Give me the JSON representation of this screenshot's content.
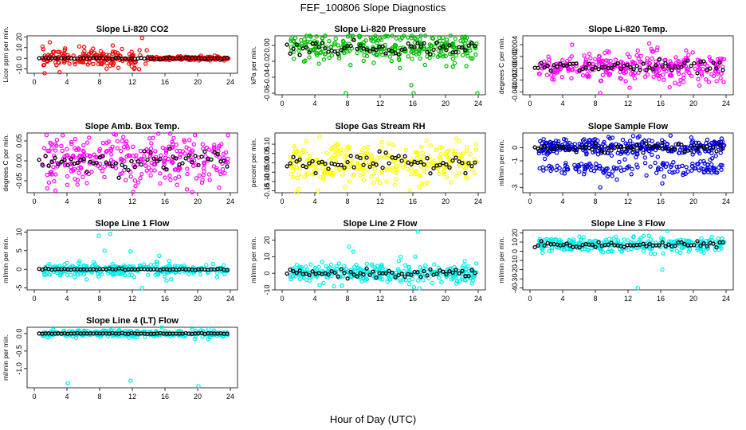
{
  "figure": {
    "title": "FEF_100806  Slope Diagnostics",
    "xlabel": "Hour of Day (UTC)"
  },
  "chart_data": [
    {
      "type": "scatter",
      "title": "Slope Li-820 CO2",
      "ylabel": "Licor ppm per min.",
      "color": "#ff0000",
      "xlim": [
        0,
        24
      ],
      "xticks": [
        0,
        4,
        8,
        12,
        16,
        20,
        24
      ],
      "ylim": [
        -14,
        21
      ],
      "yticks": [
        -10,
        0,
        10,
        20
      ],
      "ytick_labels": [
        "-10",
        "0",
        "10",
        "20"
      ],
      "highlight_color": "#000000",
      "series": [
        {
          "mean": 0,
          "spread": 2.5,
          "outliers": [
            [
              1.9,
              15
            ],
            [
              5.5,
              11
            ],
            [
              9.6,
              12
            ],
            [
              13.2,
              19
            ],
            [
              10.3,
              -9
            ],
            [
              3.1,
              -13
            ],
            [
              12.3,
              -9
            ],
            [
              22,
              -1
            ]
          ]
        }
      ]
    },
    {
      "type": "scatter",
      "title": "Slope Li-820 Pressure",
      "ylabel": "kPa per min.",
      "color": "#00bb00",
      "xlim": [
        0,
        24
      ],
      "xticks": [
        0,
        4,
        8,
        12,
        16,
        20,
        24
      ],
      "ylim": [
        -0.062,
        0.012
      ],
      "yticks": [
        -0.06,
        -0.04,
        -0.02,
        0
      ],
      "ytick_labels": [
        "-0.06",
        "-0.04",
        "-0.02",
        "0.00"
      ],
      "highlight_color": "#000000",
      "series": [
        {
          "mean": -0.003,
          "spread": 0.009,
          "outliers": [
            [
              7.8,
              -0.06
            ],
            [
              16.1,
              -0.06
            ],
            [
              23.9,
              -0.06
            ],
            [
              15.8,
              -0.05
            ],
            [
              4.5,
              -0.023
            ],
            [
              20.1,
              -0.026
            ],
            [
              11.2,
              -0.022
            ]
          ]
        }
      ]
    },
    {
      "type": "scatter",
      "title": "Slope Li-820 Temp.",
      "ylabel": "degrees C per min.",
      "color": "#ff00ff",
      "xlim": [
        0,
        24
      ],
      "xticks": [
        0,
        4,
        8,
        12,
        16,
        20,
        24
      ],
      "ylim": [
        -0.0045,
        0.0055
      ],
      "yticks": [
        -0.004,
        -0.002,
        0,
        0.002,
        0.004
      ],
      "ytick_labels": [
        "-0.004",
        "-0.002",
        "0.000",
        "0.002",
        "0.004"
      ],
      "highlight_color": "#000000",
      "series": [
        {
          "mean": 0.0002,
          "spread": 0.0012,
          "outliers": [
            [
              14.6,
              0.0042
            ],
            [
              15.6,
              0.0035
            ],
            [
              8.6,
              -0.0042
            ],
            [
              12.2,
              -0.0033
            ],
            [
              13.2,
              0.003
            ]
          ]
        }
      ]
    },
    {
      "type": "scatter",
      "title": "Slope Amb. Box Temp.",
      "ylabel": "degrees C per min.",
      "color": "#ff00ff",
      "xlim": [
        0,
        24
      ],
      "xticks": [
        0,
        4,
        8,
        12,
        16,
        20,
        24
      ],
      "ylim": [
        -0.08,
        0.07
      ],
      "yticks": [
        -0.05,
        0,
        0.05
      ],
      "ytick_labels": [
        "-0.05",
        "0.00",
        "0.05"
      ],
      "highlight_color": "#000000",
      "series": [
        {
          "mean": 0,
          "spread": 0.03,
          "outliers": [
            [
              1.5,
              0.065
            ],
            [
              2.6,
              -0.075
            ],
            [
              10.9,
              0.06
            ],
            [
              12.1,
              -0.078
            ],
            [
              6.7,
              0.058
            ]
          ]
        }
      ]
    },
    {
      "type": "scatter",
      "title": "Slope Gas Stream RH",
      "ylabel": "percent per min.",
      "color": "#ffff00",
      "xlim": [
        0,
        24
      ],
      "xticks": [
        0,
        4,
        8,
        12,
        16,
        20,
        24
      ],
      "ylim": [
        -0.16,
        0.16
      ],
      "yticks": [
        -0.15,
        -0.1,
        -0.05,
        0,
        0.05,
        0.1
      ],
      "ytick_labels": [
        "-0.15",
        "-0.10",
        "-0.05",
        "0.00",
        "0.05",
        "0.10"
      ],
      "highlight_color": "#000000",
      "series": [
        {
          "mean": 0,
          "spread": 0.05,
          "outliers": [
            [
              4.6,
              0.14
            ],
            [
              4.4,
              -0.15
            ],
            [
              17.7,
              0.12
            ],
            [
              12.2,
              0.11
            ],
            [
              7.7,
              -0.13
            ]
          ]
        }
      ]
    },
    {
      "type": "scatter",
      "title": "Slope Sample Flow",
      "ylabel": "ml/min per min.",
      "color": "#0000dd",
      "xlim": [
        0,
        24
      ],
      "xticks": [
        0,
        4,
        8,
        12,
        16,
        20,
        24
      ],
      "ylim": [
        -3.4,
        1.1
      ],
      "yticks": [
        -3,
        -2,
        -1,
        0
      ],
      "ytick_labels": [
        "-3",
        "",
        "-1",
        "0"
      ],
      "highlight_color": "#000000",
      "series": [
        {
          "mean": 0,
          "spread": 0.35,
          "outliers": [
            [
              16.2,
              -2.7
            ],
            [
              8.6,
              -3.0
            ],
            [
              17.2,
              0.9
            ],
            [
              9.6,
              0.8
            ]
          ]
        },
        {
          "mean": -1.6,
          "spread": 0.45,
          "outliers": []
        }
      ]
    },
    {
      "type": "scatter",
      "title": "Slope Line 1 Flow",
      "ylabel": "ml/min per min.",
      "color": "#00eeee",
      "xlim": [
        0,
        24
      ],
      "xticks": [
        0,
        4,
        8,
        12,
        16,
        20,
        24
      ],
      "ylim": [
        -5.5,
        10.5
      ],
      "yticks": [
        -5,
        0,
        5,
        10
      ],
      "ytick_labels": [
        "-5",
        "0",
        "5",
        "10"
      ],
      "highlight_color": "#000000",
      "series": [
        {
          "mean": 0,
          "spread": 0.8,
          "outliers": [
            [
              7.9,
              9
            ],
            [
              9.3,
              9.5
            ],
            [
              8.6,
              5
            ],
            [
              13.2,
              -5
            ],
            [
              16.2,
              -3
            ],
            [
              11.8,
              4.8
            ],
            [
              15.3,
              3.6
            ]
          ]
        }
      ]
    },
    {
      "type": "scatter",
      "title": "Slope Line 2 Flow",
      "ylabel": "ml/min per min.",
      "color": "#00eeee",
      "xlim": [
        0,
        24
      ],
      "xticks": [
        0,
        4,
        8,
        12,
        16,
        20,
        24
      ],
      "ylim": [
        -10,
        26
      ],
      "yticks": [
        -10,
        0,
        10,
        20
      ],
      "ytick_labels": [
        "-10",
        "0",
        "10",
        "20"
      ],
      "highlight_color": "#000000",
      "series": [
        {
          "mean": 0,
          "spread": 2.8,
          "outliers": [
            [
              16.6,
              25
            ],
            [
              16.3,
              10
            ],
            [
              8.7,
              13
            ],
            [
              8.2,
              16
            ],
            [
              16.8,
              -9
            ],
            [
              4.6,
              -7
            ]
          ]
        }
      ]
    },
    {
      "type": "scatter",
      "title": "Slope Line 3 Flow",
      "ylabel": "ml/min per min.",
      "color": "#00eeee",
      "xlim": [
        0,
        24
      ],
      "xticks": [
        0,
        4,
        8,
        12,
        16,
        20,
        24
      ],
      "ylim": [
        -42,
        23
      ],
      "yticks": [
        -40,
        -30,
        -20,
        -10,
        0,
        10,
        20
      ],
      "ytick_labels": [
        "-40",
        "-30",
        "-20",
        "-10",
        "0",
        "10",
        "20"
      ],
      "highlight_color": "#000000",
      "series": [
        {
          "mean": 7,
          "spread": 4,
          "outliers": [
            [
              16.8,
              22
            ],
            [
              13.2,
              -40
            ],
            [
              16.2,
              -20
            ]
          ]
        }
      ]
    },
    {
      "type": "scatter",
      "title": "Slope Line 4 (LT) Flow",
      "ylabel": "ml/min per min.",
      "color": "#00eeee",
      "xlim": [
        0,
        24
      ],
      "xticks": [
        0,
        4,
        8,
        12,
        16,
        20,
        24
      ],
      "ylim": [
        -1.55,
        0.18
      ],
      "yticks": [
        -1.0,
        -0.5,
        0
      ],
      "ytick_labels": [
        "-1.0",
        "-0.5",
        "0.0"
      ],
      "highlight_color": "#000000",
      "series": [
        {
          "mean": 0,
          "spread": 0.05,
          "outliers": [
            [
              4.1,
              -1.42
            ],
            [
              11.8,
              -1.35
            ],
            [
              20.1,
              -1.5
            ]
          ]
        }
      ]
    }
  ]
}
